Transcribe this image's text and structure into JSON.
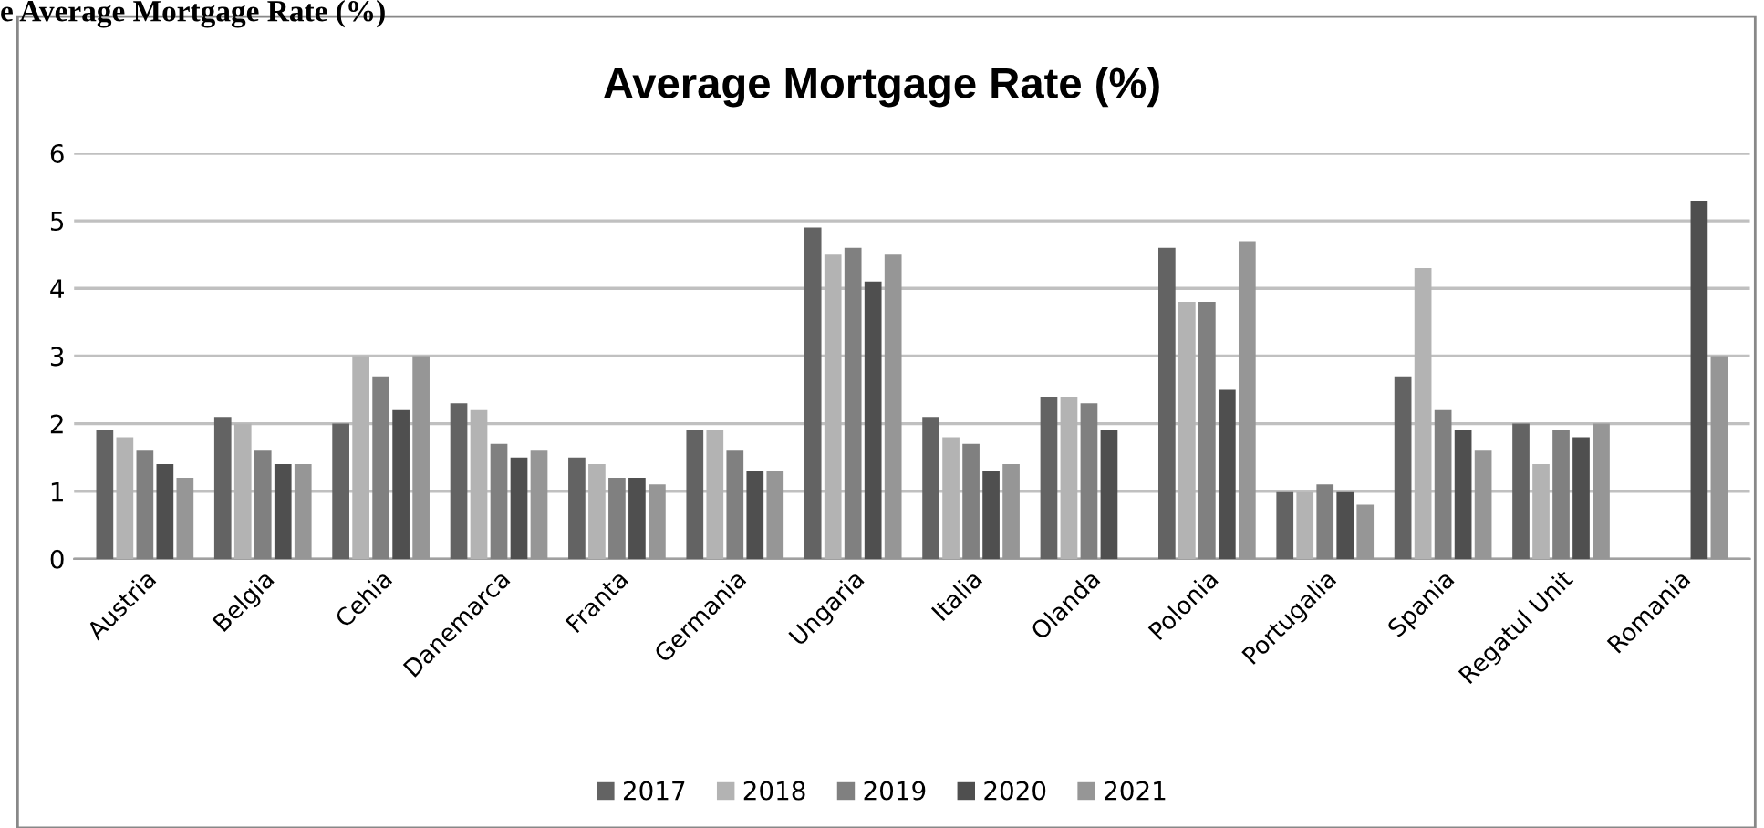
{
  "chart_data": {
    "type": "bar",
    "title": "Average Mortgage Rate (%)",
    "annotations": [
      "e Average Mortgage Rate (%)"
    ],
    "categories": [
      "Austria",
      "Belgia",
      "Cehia",
      "Danemarca",
      "Franta",
      "Germania",
      "Ungaria",
      "Italia",
      "Olanda",
      "Polonia",
      "Portugalia",
      "Spania",
      "Regatul Unit",
      "Romania"
    ],
    "series": [
      {
        "name": "2017",
        "color": "#636363",
        "values": [
          1.9,
          2.1,
          2.0,
          2.3,
          1.5,
          1.9,
          4.9,
          2.1,
          2.4,
          4.6,
          1.0,
          2.7,
          2.0,
          null
        ]
      },
      {
        "name": "2018",
        "color": "#b3b3b3",
        "values": [
          1.8,
          2.0,
          3.0,
          2.2,
          1.4,
          1.9,
          4.5,
          1.8,
          2.4,
          3.8,
          1.0,
          4.3,
          1.4,
          null
        ]
      },
      {
        "name": "2019",
        "color": "#808080",
        "values": [
          1.6,
          1.6,
          2.7,
          1.7,
          1.2,
          1.6,
          4.6,
          1.7,
          2.3,
          3.8,
          1.1,
          2.2,
          1.9,
          null
        ]
      },
      {
        "name": "2020",
        "color": "#4f4f4f",
        "values": [
          1.4,
          1.4,
          2.2,
          1.5,
          1.2,
          1.3,
          4.1,
          1.3,
          1.9,
          2.5,
          1.0,
          1.9,
          1.8,
          5.3
        ]
      },
      {
        "name": "2021",
        "color": "#969696",
        "values": [
          1.2,
          1.4,
          3.0,
          1.6,
          1.1,
          1.3,
          4.5,
          1.4,
          null,
          4.7,
          0.8,
          1.6,
          2.0,
          3.0
        ]
      }
    ],
    "ylim": [
      0,
      6
    ],
    "yticks": [
      0,
      1,
      2,
      3,
      4,
      5,
      6
    ],
    "grid": "y",
    "legend": "bottom"
  }
}
